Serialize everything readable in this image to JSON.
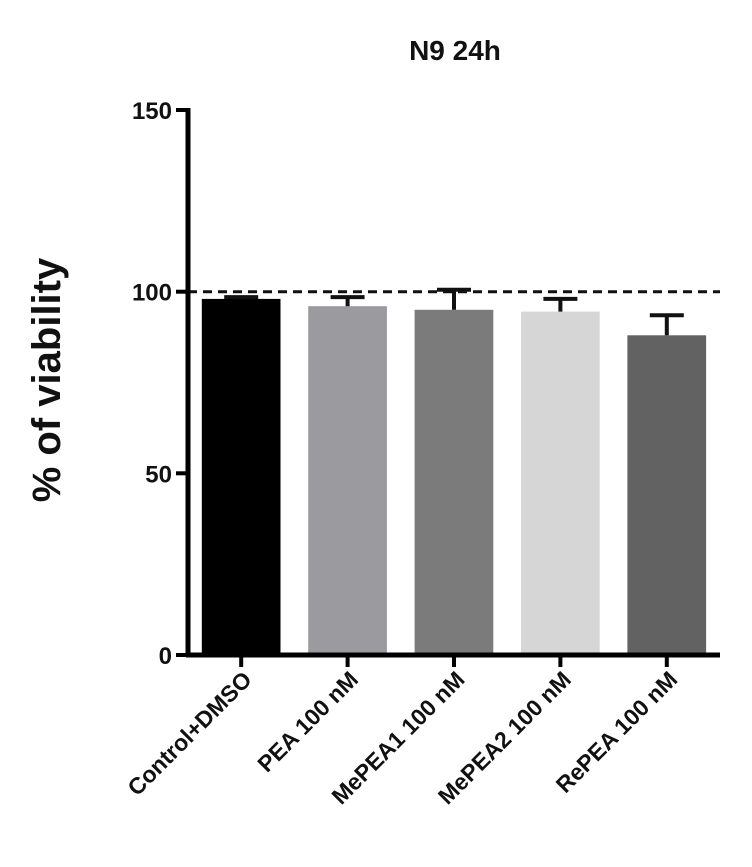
{
  "chart_data": {
    "type": "bar",
    "title": "N9 24h",
    "xlabel": "",
    "ylabel": "% of viability",
    "ylim": [
      0,
      150
    ],
    "yticks": [
      "0",
      "50",
      "100",
      "150"
    ],
    "categories": [
      "Control+DMSO",
      "PEA 100 nM",
      "MePEA1 100 nM",
      "MePEA2 100 nM",
      "RePEA 100 nM"
    ],
    "values": [
      98,
      96,
      95,
      94.5,
      88
    ],
    "errors": [
      0.5,
      2.5,
      5.5,
      3.5,
      5.5
    ],
    "colors": [
      "#000000",
      "#9b9b9f",
      "#7b7b7b",
      "#d6d6d6",
      "#626262"
    ],
    "reference_line": 100,
    "grid": false,
    "legend": "none"
  }
}
